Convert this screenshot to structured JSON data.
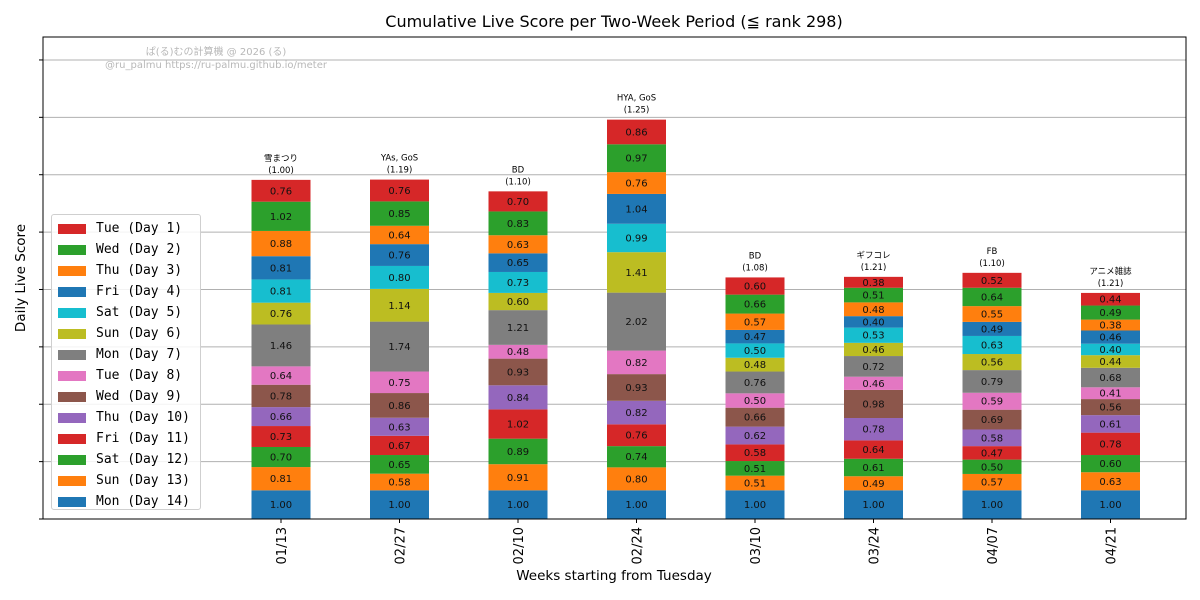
{
  "chart_data": {
    "type": "bar",
    "stacked": true,
    "title": "Cumulative Live Score per Two-Week Period (≦ rank 298)",
    "xlabel": "Weeks starting from Tuesday",
    "ylabel": "Daily Live Score",
    "grid": "horizontal",
    "legend_placement": "center-left",
    "watermark": [
      "ぱ(る)むの計算機 @ 2026 (る)",
      "@ru_palmu  https://ru-palmu.github.io/meter"
    ],
    "categories": [
      "01/13",
      "02/27",
      "02/10",
      "02/24",
      "03/10",
      "03/24",
      "04/07",
      "04/21"
    ],
    "bar_annotations": [
      {
        "label": "雪まつり",
        "value": "(1.00)"
      },
      {
        "label": "YAs, GoS",
        "value": "(1.19)"
      },
      {
        "label": "BD",
        "value": "(1.10)"
      },
      {
        "label": "HYA, GoS",
        "value": "(1.25)"
      },
      {
        "label": "BD",
        "value": "(1.08)"
      },
      {
        "label": "ギフコレ",
        "value": "(1.21)"
      },
      {
        "label": "FB",
        "value": "(1.10)"
      },
      {
        "label": "アニメ雑誌",
        "value": "(1.21)"
      }
    ],
    "series": [
      {
        "name": "Mon (Day 14)",
        "color": "#1f77b4",
        "values": [
          1.0,
          1.0,
          1.0,
          1.0,
          1.0,
          1.0,
          1.0,
          1.0
        ]
      },
      {
        "name": "Sun (Day 13)",
        "color": "#ff7f0e",
        "values": [
          0.81,
          0.58,
          0.91,
          0.8,
          0.51,
          0.49,
          0.57,
          0.63
        ]
      },
      {
        "name": "Sat (Day 12)",
        "color": "#2ca02c",
        "values": [
          0.7,
          0.65,
          0.89,
          0.74,
          0.51,
          0.61,
          0.5,
          0.6
        ]
      },
      {
        "name": "Fri (Day 11)",
        "color": "#d62728",
        "values": [
          0.73,
          0.67,
          1.02,
          0.76,
          0.58,
          0.64,
          0.47,
          0.78
        ]
      },
      {
        "name": "Thu (Day 10)",
        "color": "#9467bd",
        "values": [
          0.66,
          0.63,
          0.84,
          0.82,
          0.62,
          0.78,
          0.58,
          0.61
        ]
      },
      {
        "name": "Wed (Day 9)",
        "color": "#8c564b",
        "values": [
          0.78,
          0.86,
          0.93,
          0.93,
          0.66,
          0.98,
          0.69,
          0.56
        ]
      },
      {
        "name": "Tue (Day 8)",
        "color": "#e377c2",
        "values": [
          0.64,
          0.75,
          0.48,
          0.82,
          0.5,
          0.46,
          0.59,
          0.41
        ]
      },
      {
        "name": "Mon (Day 7)",
        "color": "#7f7f7f",
        "values": [
          1.46,
          1.74,
          1.21,
          2.02,
          0.76,
          0.72,
          0.79,
          0.68
        ]
      },
      {
        "name": "Sun (Day 6)",
        "color": "#bcbd22",
        "values": [
          0.76,
          1.14,
          0.6,
          1.41,
          0.48,
          0.46,
          0.56,
          0.44
        ]
      },
      {
        "name": "Sat (Day 5)",
        "color": "#17becf",
        "values": [
          0.81,
          0.8,
          0.73,
          0.99,
          0.5,
          0.53,
          0.63,
          0.4
        ]
      },
      {
        "name": "Fri (Day 4)",
        "color": "#1f77b4",
        "values": [
          0.81,
          0.76,
          0.65,
          1.04,
          0.47,
          0.4,
          0.49,
          0.46
        ]
      },
      {
        "name": "Thu (Day 3)",
        "color": "#ff7f0e",
        "values": [
          0.88,
          0.64,
          0.63,
          0.76,
          0.57,
          0.48,
          0.55,
          0.38
        ]
      },
      {
        "name": "Wed (Day 2)",
        "color": "#2ca02c",
        "values": [
          1.02,
          0.85,
          0.83,
          0.97,
          0.66,
          0.51,
          0.64,
          0.49
        ]
      },
      {
        "name": "Tue (Day 1)",
        "color": "#d62728",
        "values": [
          0.76,
          0.76,
          0.7,
          0.86,
          0.6,
          0.38,
          0.52,
          0.44
        ]
      }
    ],
    "legend_order": [
      "Tue (Day 1)",
      "Wed (Day 2)",
      "Thu (Day 3)",
      "Fri (Day 4)",
      "Sat (Day 5)",
      "Sun (Day 6)",
      "Mon (Day 7)",
      "Tue (Day 8)",
      "Wed (Day 9)",
      "Thu (Day 10)",
      "Fri (Day 11)",
      "Sat (Day 12)",
      "Sun (Day 13)",
      "Mon (Day 14)"
    ],
    "ylim": [
      0,
      16.8
    ],
    "ytick_step": 2
  }
}
